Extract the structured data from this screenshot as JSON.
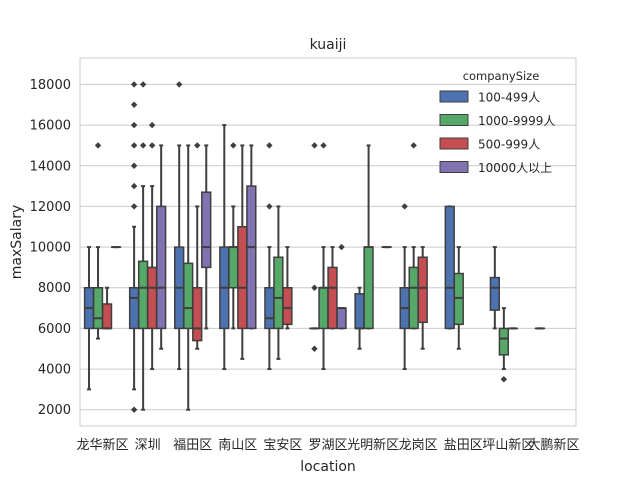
{
  "chart_data": {
    "type": "boxplot",
    "title": "kuaiji",
    "xlabel": "location",
    "ylabel": "maxSalary",
    "ylim": [
      1200,
      19300
    ],
    "yticks": [
      2000,
      4000,
      6000,
      8000,
      10000,
      12000,
      14000,
      16000,
      18000
    ],
    "ytick_labels": [
      "2000",
      "4000",
      "6000",
      "8000",
      "10000",
      "12000",
      "14000",
      "16000",
      "18000"
    ],
    "grid": true,
    "legend_position": "top-right",
    "legend_title": "companySize",
    "categories": [
      "龙华新区",
      "深圳",
      "福田区",
      "南山区",
      "宝安区",
      "罗湖区",
      "光明新区",
      "龙岗区",
      "盐田区",
      "坪山新区",
      "大鹏新区"
    ],
    "series": [
      {
        "name": "100-499人",
        "color": "#4c72b0",
        "boxes": [
          {
            "category": "龙华新区",
            "whislo": 3000,
            "q1": 6000,
            "med": 7000,
            "q3": 8000,
            "whishi": 10000,
            "fliers": []
          },
          {
            "category": "深圳",
            "whislo": 3000,
            "q1": 6000,
            "med": 7500,
            "q3": 8000,
            "whishi": 11000,
            "fliers": [
              2000,
              12000,
              13000,
              14000,
              15000,
              16000,
              17000,
              18000
            ]
          },
          {
            "category": "福田区",
            "whislo": 4000,
            "q1": 6000,
            "med": 8000,
            "q3": 10000,
            "whishi": 15000,
            "fliers": [
              18000
            ]
          },
          {
            "category": "南山区",
            "whislo": 4000,
            "q1": 6000,
            "med": 8000,
            "q3": 10000,
            "whishi": 16000,
            "fliers": []
          },
          {
            "category": "宝安区",
            "whislo": 4000,
            "q1": 6000,
            "med": 6500,
            "q3": 8000,
            "whishi": 10000,
            "fliers": [
              12000,
              15000
            ]
          },
          {
            "category": "罗湖区",
            "whislo": 6000,
            "q1": 6000,
            "med": 6000,
            "q3": 6000,
            "whishi": 6000,
            "fliers": [
              5000,
              8000,
              15000
            ]
          },
          {
            "category": "光明新区",
            "whislo": 5000,
            "q1": 6000,
            "med": 6000,
            "q3": 7700,
            "whishi": 8000,
            "fliers": []
          },
          {
            "category": "龙岗区",
            "whislo": 4000,
            "q1": 6000,
            "med": 7000,
            "q3": 8000,
            "whishi": 10000,
            "fliers": [
              12000
            ]
          },
          {
            "category": "盐田区",
            "whislo": 6000,
            "q1": 6000,
            "med": 8000,
            "q3": 12000,
            "whishi": 12000,
            "fliers": []
          },
          {
            "category": "坪山新区",
            "whislo": 6000,
            "q1": 6900,
            "med": 8000,
            "q3": 8500,
            "whishi": 10000,
            "fliers": []
          },
          {
            "category": "大鹏新区",
            "whislo": 6000,
            "q1": 6000,
            "med": 6000,
            "q3": 6000,
            "whishi": 6000,
            "fliers": []
          }
        ]
      },
      {
        "name": "1000-9999人",
        "color": "#55a868",
        "boxes": [
          {
            "category": "龙华新区",
            "whislo": 5500,
            "q1": 6000,
            "med": 6500,
            "q3": 8000,
            "whishi": 10000,
            "fliers": [
              15000
            ]
          },
          {
            "category": "深圳",
            "whislo": 2000,
            "q1": 6000,
            "med": 8000,
            "q3": 9300,
            "whishi": 13000,
            "fliers": [
              15000,
              18000
            ]
          },
          {
            "category": "福田区",
            "whislo": 2000,
            "q1": 6000,
            "med": 7000,
            "q3": 9200,
            "whishi": 15000,
            "fliers": []
          },
          {
            "category": "南山区",
            "whislo": 6000,
            "q1": 8000,
            "med": 10000,
            "q3": 10000,
            "whishi": 12000,
            "fliers": [
              15000
            ]
          },
          {
            "category": "宝安区",
            "whislo": 4500,
            "q1": 6000,
            "med": 7500,
            "q3": 9500,
            "whishi": 12000,
            "fliers": []
          },
          {
            "category": "罗湖区",
            "whislo": 4000,
            "q1": 6000,
            "med": 8000,
            "q3": 8000,
            "whishi": 10000,
            "fliers": [
              15000
            ]
          },
          {
            "category": "光明新区",
            "whislo": 6000,
            "q1": 6000,
            "med": 10000,
            "q3": 10000,
            "whishi": 15000,
            "fliers": []
          },
          {
            "category": "龙岗区",
            "whislo": 6000,
            "q1": 6000,
            "med": 8000,
            "q3": 9000,
            "whishi": 10000,
            "fliers": [
              15000
            ]
          },
          {
            "category": "盐田区",
            "whislo": 5000,
            "q1": 6200,
            "med": 7500,
            "q3": 8700,
            "whishi": 10000,
            "fliers": []
          },
          {
            "category": "坪山新区",
            "whislo": 4000,
            "q1": 4700,
            "med": 5500,
            "q3": 6000,
            "whishi": 7000,
            "fliers": [
              3500
            ]
          }
        ]
      },
      {
        "name": "500-999人",
        "color": "#c44e52",
        "boxes": [
          {
            "category": "龙华新区",
            "whislo": 6000,
            "q1": 6000,
            "med": 6000,
            "q3": 7200,
            "whishi": 8000,
            "fliers": []
          },
          {
            "category": "深圳",
            "whislo": 4000,
            "q1": 6000,
            "med": 8000,
            "q3": 9000,
            "whishi": 13000,
            "fliers": [
              15000,
              16000
            ]
          },
          {
            "category": "福田区",
            "whislo": 5000,
            "q1": 5400,
            "med": 6000,
            "q3": 8000,
            "whishi": 12000,
            "fliers": [
              15000
            ]
          },
          {
            "category": "南山区",
            "whislo": 4500,
            "q1": 6000,
            "med": 8000,
            "q3": 11000,
            "whishi": 15000,
            "fliers": []
          },
          {
            "category": "宝安区",
            "whislo": 6000,
            "q1": 6200,
            "med": 7000,
            "q3": 8000,
            "whishi": 10000,
            "fliers": []
          },
          {
            "category": "罗湖区",
            "whislo": 6000,
            "q1": 6000,
            "med": 8000,
            "q3": 9000,
            "whishi": 10000,
            "fliers": []
          },
          {
            "category": "龙岗区",
            "whislo": 5000,
            "q1": 6300,
            "med": 8000,
            "q3": 9500,
            "whishi": 10000,
            "fliers": []
          },
          {
            "category": "坪山新区",
            "whislo": 6000,
            "q1": 6000,
            "med": 6000,
            "q3": 6000,
            "whishi": 6000,
            "fliers": []
          }
        ]
      },
      {
        "name": "10000人以上",
        "color": "#8172b2",
        "boxes": [
          {
            "category": "龙华新区",
            "whislo": 10000,
            "q1": 10000,
            "med": 10000,
            "q3": 10000,
            "whishi": 10000,
            "fliers": []
          },
          {
            "category": "深圳",
            "whislo": 5000,
            "q1": 6000,
            "med": 8000,
            "q3": 12000,
            "whishi": 15000,
            "fliers": []
          },
          {
            "category": "福田区",
            "whislo": 6000,
            "q1": 9000,
            "med": 10000,
            "q3": 12700,
            "whishi": 15000,
            "fliers": []
          },
          {
            "category": "南山区",
            "whislo": 6000,
            "q1": 6000,
            "med": 10000,
            "q3": 13000,
            "whishi": 15000,
            "fliers": []
          },
          {
            "category": "罗湖区",
            "whislo": 6000,
            "q1": 6000,
            "med": 7000,
            "q3": 7000,
            "whishi": 7000,
            "fliers": [
              10000
            ]
          },
          {
            "category": "光明新区",
            "whislo": 10000,
            "q1": 10000,
            "med": 10000,
            "q3": 10000,
            "whishi": 10000,
            "fliers": []
          }
        ]
      }
    ]
  }
}
